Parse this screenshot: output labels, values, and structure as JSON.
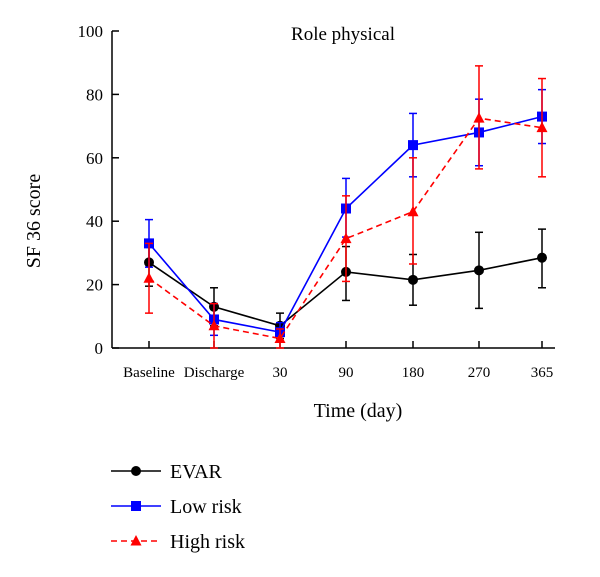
{
  "chart_data": {
    "type": "line",
    "title": "Role physical",
    "xlabel": "Time (day)",
    "ylabel": "SF 36 score",
    "categories": [
      "Baseline",
      "Discharge",
      "30",
      "90",
      "180",
      "270",
      "365"
    ],
    "ylim": [
      0,
      100
    ],
    "yticks": [
      "0",
      "20",
      "40",
      "60",
      "80",
      "100"
    ],
    "grid": false,
    "legend_position": "bottom-left",
    "series": [
      {
        "name": "EVAR",
        "color": "#000000",
        "marker": "circle",
        "line_style": "solid",
        "values": [
          27,
          13,
          7,
          24,
          21.5,
          24.5,
          28.5
        ],
        "error_low": [
          19.5,
          7,
          3,
          15,
          13.5,
          12.5,
          19
        ],
        "error_high": [
          34,
          19,
          11,
          32,
          29.5,
          36.5,
          37.5
        ]
      },
      {
        "name": "Low risk",
        "color": "#0000ff",
        "marker": "square",
        "line_style": "solid",
        "values": [
          33,
          9,
          5,
          44,
          64,
          68,
          73
        ],
        "error_low": [
          25.5,
          4,
          2,
          35,
          54,
          57.5,
          64.5
        ],
        "error_high": [
          40.5,
          14,
          8,
          53.5,
          74,
          78.5,
          81.5
        ]
      },
      {
        "name": "High risk",
        "color": "#ff0000",
        "marker": "triangle",
        "line_style": "dashed",
        "values": [
          22,
          7,
          3,
          34.5,
          43,
          72.5,
          69.5
        ],
        "error_low": [
          11,
          0,
          0,
          21,
          26.5,
          56.5,
          54
        ],
        "error_high": [
          33,
          14,
          6,
          48,
          60,
          89,
          85
        ]
      }
    ]
  }
}
